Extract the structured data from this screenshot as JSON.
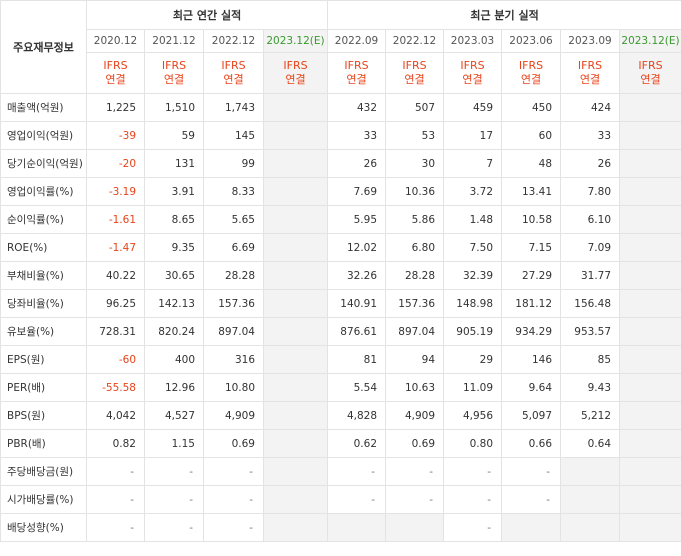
{
  "header": {
    "left_title": "주요재무정보",
    "annual_title": "최근 연간 실적",
    "quarterly_title": "최근 분기 실적",
    "periods": [
      "2020.12",
      "2021.12",
      "2022.12",
      "2023.12(E)",
      "2022.09",
      "2022.12",
      "2023.03",
      "2023.06",
      "2023.09",
      "2023.12(E)"
    ],
    "basis_line1": "IFRS",
    "basis_line2": "연결"
  },
  "rows": [
    {
      "label": "매출액(억원)",
      "values": [
        "1,225",
        "1,510",
        "1,743",
        "",
        "432",
        "507",
        "459",
        "450",
        "424",
        ""
      ]
    },
    {
      "label": "영업이익(억원)",
      "values": [
        "-39",
        "59",
        "145",
        "",
        "33",
        "53",
        "17",
        "60",
        "33",
        ""
      ]
    },
    {
      "label": "당기순이익(억원)",
      "values": [
        "-20",
        "131",
        "99",
        "",
        "26",
        "30",
        "7",
        "48",
        "26",
        ""
      ]
    },
    {
      "label": "영업이익률(%)",
      "values": [
        "-3.19",
        "3.91",
        "8.33",
        "",
        "7.69",
        "10.36",
        "3.72",
        "13.41",
        "7.80",
        ""
      ]
    },
    {
      "label": "순이익률(%)",
      "values": [
        "-1.61",
        "8.65",
        "5.65",
        "",
        "5.95",
        "5.86",
        "1.48",
        "10.58",
        "6.10",
        ""
      ]
    },
    {
      "label": "ROE(%)",
      "values": [
        "-1.47",
        "9.35",
        "6.69",
        "",
        "12.02",
        "6.80",
        "7.50",
        "7.15",
        "7.09",
        ""
      ]
    },
    {
      "label": "부채비율(%)",
      "values": [
        "40.22",
        "30.65",
        "28.28",
        "",
        "32.26",
        "28.28",
        "32.39",
        "27.29",
        "31.77",
        ""
      ]
    },
    {
      "label": "당좌비율(%)",
      "values": [
        "96.25",
        "142.13",
        "157.36",
        "",
        "140.91",
        "157.36",
        "148.98",
        "181.12",
        "156.48",
        ""
      ]
    },
    {
      "label": "유보율(%)",
      "values": [
        "728.31",
        "820.24",
        "897.04",
        "",
        "876.61",
        "897.04",
        "905.19",
        "934.29",
        "953.57",
        ""
      ]
    },
    {
      "label": "EPS(원)",
      "values": [
        "-60",
        "400",
        "316",
        "",
        "81",
        "94",
        "29",
        "146",
        "85",
        ""
      ]
    },
    {
      "label": "PER(배)",
      "values": [
        "-55.58",
        "12.96",
        "10.80",
        "",
        "5.54",
        "10.63",
        "11.09",
        "9.64",
        "9.43",
        ""
      ]
    },
    {
      "label": "BPS(원)",
      "values": [
        "4,042",
        "4,527",
        "4,909",
        "",
        "4,828",
        "4,909",
        "4,956",
        "5,097",
        "5,212",
        ""
      ]
    },
    {
      "label": "PBR(배)",
      "values": [
        "0.82",
        "1.15",
        "0.69",
        "",
        "0.62",
        "0.69",
        "0.80",
        "0.66",
        "0.64",
        ""
      ]
    },
    {
      "label": "주당배당금(원)",
      "values": [
        "-",
        "-",
        "-",
        "",
        "-",
        "-",
        "-",
        "-",
        "",
        ""
      ]
    },
    {
      "label": "시가배당률(%)",
      "values": [
        "-",
        "-",
        "-",
        "",
        "-",
        "-",
        "-",
        "-",
        "",
        ""
      ]
    },
    {
      "label": "배당성향(%)",
      "values": [
        "-",
        "-",
        "-",
        "",
        "",
        "",
        "-",
        "",
        "",
        ""
      ]
    }
  ],
  "colors": {
    "negative": "#e8431b",
    "estimate_header": "#3a9a2e",
    "estimate_bg": "#f3f3f3"
  }
}
